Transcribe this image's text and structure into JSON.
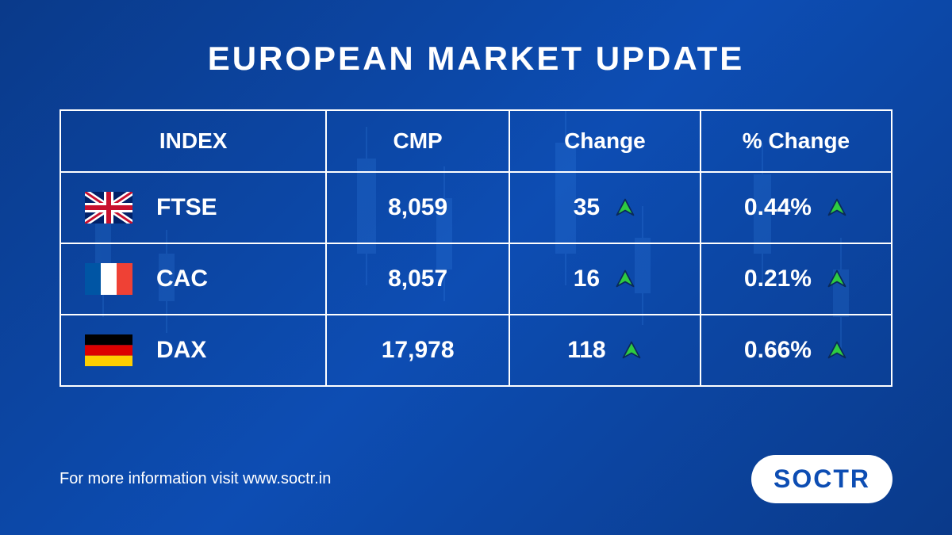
{
  "title": "EUROPEAN MARKET UPDATE",
  "footer_text": "For more information visit www.soctr.in",
  "logo_text": "SOCTR",
  "colors": {
    "background_gradient_start": "#0a3a8a",
    "background_gradient_mid": "#0d4db3",
    "text_color": "#ffffff",
    "border_color": "#ffffff",
    "arrow_up_color": "#2ecc40",
    "arrow_up_stroke": "#0a2a5a",
    "logo_bg": "#ffffff",
    "logo_text_color": "#0d4db3"
  },
  "typography": {
    "title_fontsize": 42,
    "header_fontsize": 28,
    "cell_fontsize": 30,
    "footer_fontsize": 20,
    "logo_fontsize": 32
  },
  "table": {
    "type": "table",
    "columns": [
      "INDEX",
      "CMP",
      "Change",
      "% Change"
    ],
    "column_widths_pct": [
      32,
      22,
      23,
      23
    ],
    "rows": [
      {
        "flag": "uk",
        "index": "FTSE",
        "cmp": "8,059",
        "change": "35",
        "pct_change": "0.44%",
        "direction": "up"
      },
      {
        "flag": "fr",
        "index": "CAC",
        "cmp": "8,057",
        "change": "16",
        "pct_change": "0.21%",
        "direction": "up"
      },
      {
        "flag": "de",
        "index": "DAX",
        "cmp": "17,978",
        "change": "118",
        "pct_change": "0.66%",
        "direction": "up"
      }
    ]
  },
  "flags": {
    "uk": {
      "bg": "#012169",
      "cross": "#ffffff",
      "diag_red": "#C8102E"
    },
    "fr": {
      "blue": "#0055A4",
      "white": "#ffffff",
      "red": "#EF4135"
    },
    "de": {
      "black": "#000000",
      "red": "#DD0000",
      "gold": "#FFCE00"
    }
  }
}
